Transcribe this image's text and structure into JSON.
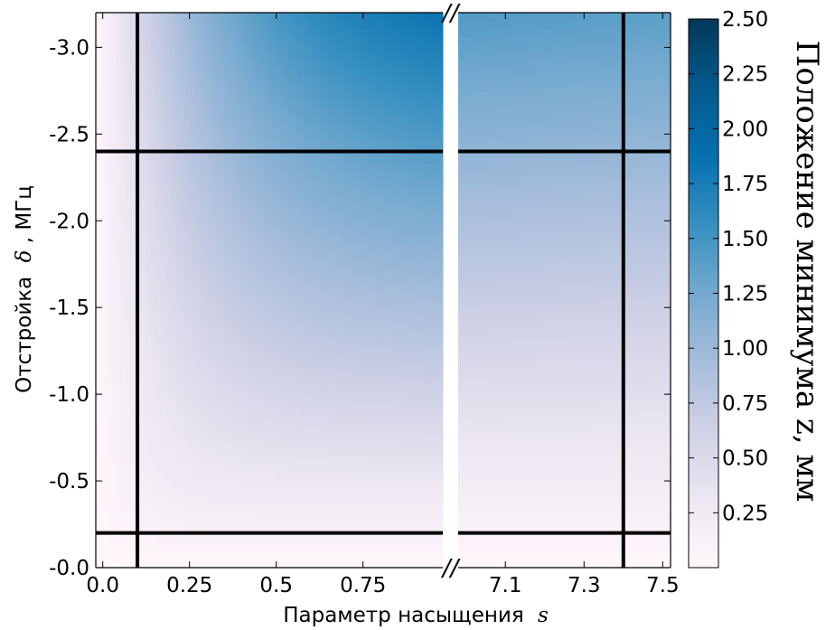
{
  "chart_data": {
    "type": "heatmap",
    "title": "",
    "xlabel": "Параметр насыщения",
    "xlabel_symbol": "s",
    "ylabel": "Отстройка",
    "ylabel_symbol": "δ",
    "ylabel_unit": ", МГц",
    "x_segments": [
      {
        "range": [
          -0.02,
          0.98
        ],
        "ticks": [
          {
            "value": 0.0,
            "label": "0.0"
          },
          {
            "value": 0.25,
            "label": "0.25"
          },
          {
            "value": 0.5,
            "label": "0.5"
          },
          {
            "value": 0.75,
            "label": "0.75"
          }
        ]
      },
      {
        "range": [
          6.98,
          7.52
        ],
        "ticks": [
          {
            "value": 7.1,
            "label": "7.1"
          },
          {
            "value": 7.3,
            "label": "7.3"
          },
          {
            "value": 7.5,
            "label": "7.5"
          }
        ]
      }
    ],
    "y_axis": {
      "range": [
        0.0,
        -3.2
      ],
      "ticks": [
        {
          "value": 0.0,
          "label": "-0.0"
        },
        {
          "value": -0.5,
          "label": "-0.5"
        },
        {
          "value": -1.0,
          "label": "-1.0"
        },
        {
          "value": -1.5,
          "label": "-1.5"
        },
        {
          "value": -2.0,
          "label": "-2.0"
        },
        {
          "value": -2.5,
          "label": "-2.5"
        },
        {
          "value": -3.0,
          "label": "-3.0"
        }
      ]
    },
    "axis_break_symbol": "//",
    "reference_lines": {
      "vertical_s": [
        0.1,
        7.4
      ],
      "horizontal_delta": [
        -2.4,
        -0.2
      ]
    },
    "colorbar": {
      "label": "Положение минимума  z, мм",
      "range": [
        0.0,
        2.5
      ],
      "ticks": [
        {
          "value": 0.25,
          "label": "0.25"
        },
        {
          "value": 0.5,
          "label": "0.50"
        },
        {
          "value": 0.75,
          "label": "0.75"
        },
        {
          "value": 1.0,
          "label": "1.00"
        },
        {
          "value": 1.25,
          "label": "1.25"
        },
        {
          "value": 1.5,
          "label": "1.50"
        },
        {
          "value": 1.75,
          "label": "1.75"
        },
        {
          "value": 2.0,
          "label": "2.00"
        },
        {
          "value": 2.25,
          "label": "2.25"
        },
        {
          "value": 2.5,
          "label": "2.50"
        }
      ],
      "colors": [
        "#fff7fb",
        "#ece7f2",
        "#d0d1e6",
        "#a6bddb",
        "#74a9cf",
        "#3690c0",
        "#0570b0",
        "#045a8d",
        "#023858"
      ]
    },
    "grid": false,
    "legend": "none"
  }
}
